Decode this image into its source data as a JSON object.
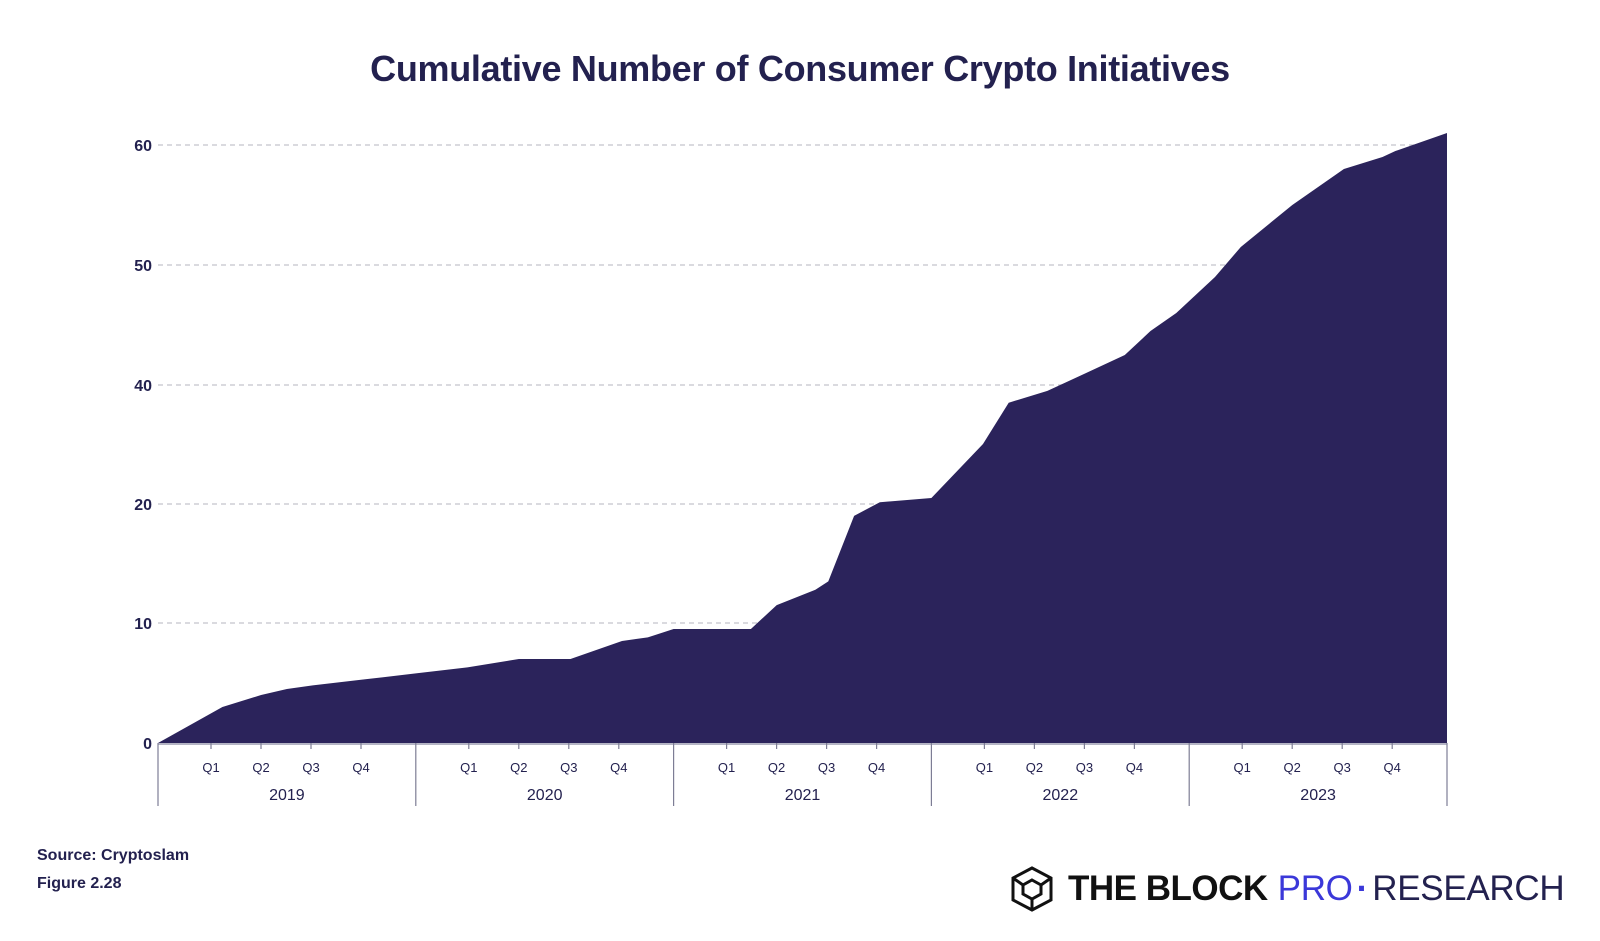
{
  "chart_data": {
    "type": "area",
    "title": "Cumulative Number of Consumer Crypto Initiatives",
    "xlabel": "",
    "ylabel": "",
    "ylim": [
      0,
      60
    ],
    "yticks": [
      0,
      10,
      20,
      40,
      50,
      60
    ],
    "grid": true,
    "color": "#2b235b",
    "quarter_labels": [
      "Q1",
      "Q2",
      "Q3",
      "Q4"
    ],
    "years": [
      "2019",
      "2020",
      "2021",
      "2022",
      "2023"
    ],
    "x": [
      0,
      0.25,
      0.4,
      0.5,
      0.6,
      0.8,
      1.0,
      1.2,
      1.4,
      1.6,
      1.8,
      1.9,
      2.0,
      2.2,
      2.3,
      2.4,
      2.55,
      2.6,
      2.7,
      2.8,
      3.0,
      3.2,
      3.3,
      3.45,
      3.6,
      3.75,
      3.85,
      3.95,
      4.1,
      4.2,
      4.4,
      4.6,
      4.75,
      4.8,
      5.0
    ],
    "values": [
      0,
      3,
      4,
      4.5,
      4.8,
      5.3,
      5.8,
      6.3,
      7.0,
      7.0,
      8.5,
      8.8,
      9.5,
      9.5,
      9.5,
      11.5,
      12.8,
      13.5,
      19,
      20.3,
      21,
      30,
      37,
      39,
      41,
      42.5,
      44.5,
      46,
      49,
      51.5,
      55,
      58,
      59,
      59.5,
      61
    ]
  },
  "footer": {
    "source": "Source: Cryptoslam",
    "figure": "Figure 2.28"
  },
  "brand": {
    "main": "THE BLOCK",
    "pro": "PRO",
    "separator": "·",
    "research": "RESEARCH",
    "logo_icon": "cube-logo-icon"
  }
}
